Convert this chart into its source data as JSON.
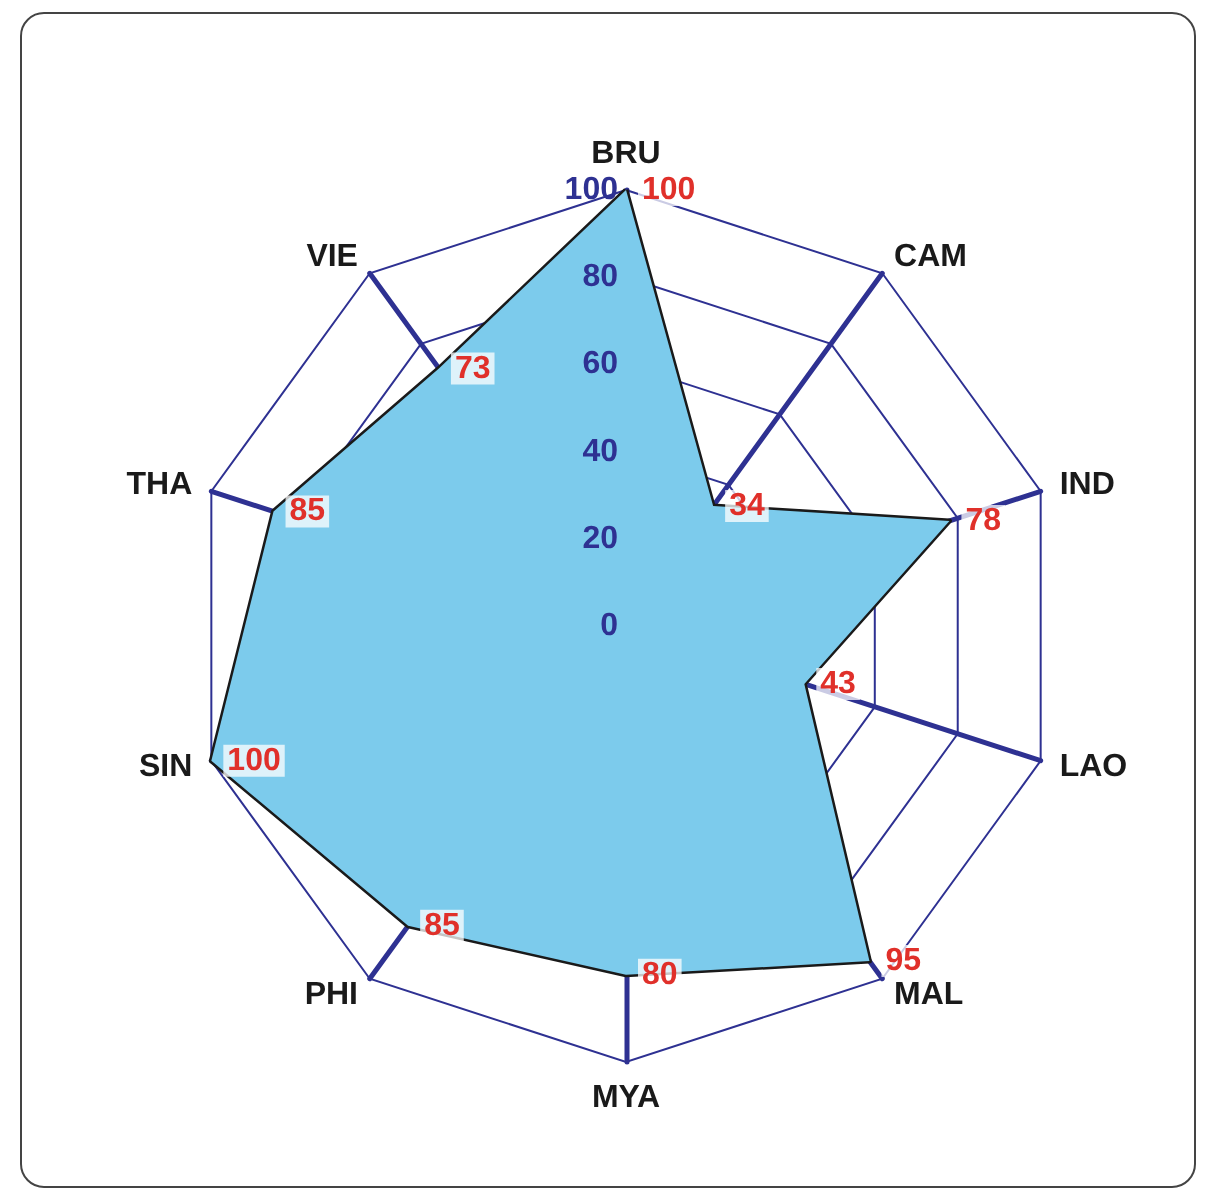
{
  "chart_data": {
    "type": "radar",
    "categories": [
      "BRU",
      "CAM",
      "IND",
      "LAO",
      "MAL",
      "MYA",
      "PHI",
      "SIN",
      "THA",
      "VIE"
    ],
    "series": [
      {
        "color": "#7ccbec",
        "values": [
          100,
          34,
          78,
          43,
          95,
          80,
          85,
          100,
          85,
          73
        ]
      }
    ],
    "ylim": [
      0,
      100
    ],
    "yticks": [
      0,
      20,
      40,
      60,
      80,
      100
    ],
    "data_labels": true
  }
}
